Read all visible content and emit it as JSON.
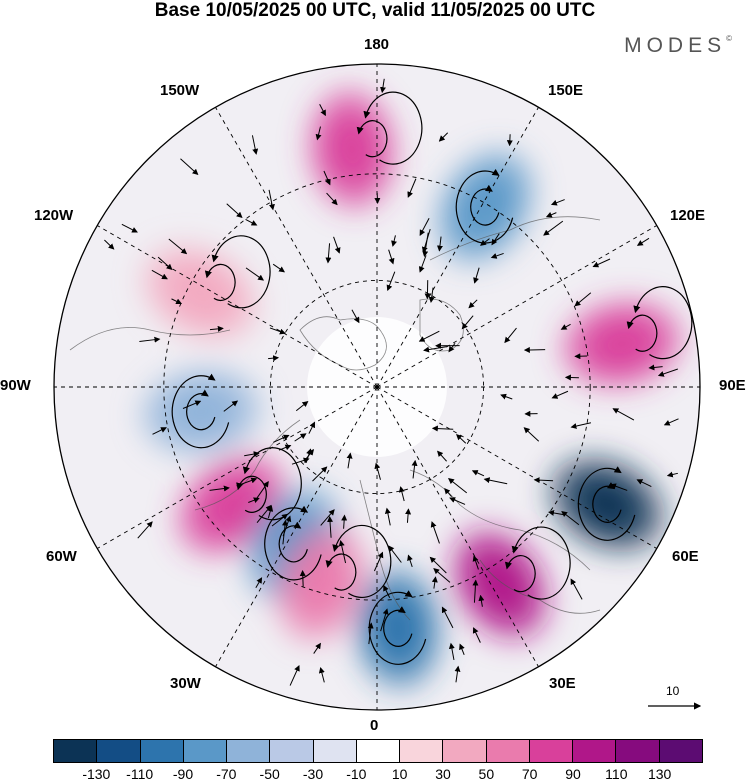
{
  "title": "Base 10/05/2025 00 UTC, valid 11/05/2025 00 UTC",
  "brand": "MODES",
  "brand_mark": "©",
  "longitude_labels": {
    "top": "180",
    "bottom": "0",
    "left": "90W",
    "right": "90E",
    "upper_left": "150W",
    "upper_left2": "120W",
    "upper_right": "150E",
    "upper_right2": "120E",
    "lower_left": "60W",
    "lower_left2": "30W",
    "lower_right": "60E",
    "lower_right2": "30E"
  },
  "vector_scale_label": "10",
  "colorbar": {
    "ticks": [
      "-130",
      "-110",
      "-90",
      "-70",
      "-50",
      "-30",
      "-10",
      "10",
      "30",
      "50",
      "70",
      "90",
      "110",
      "130"
    ],
    "colors": [
      "#0c3355",
      "#134d85",
      "#2d74ad",
      "#5a98c8",
      "#8fb3d9",
      "#bac9e6",
      "#dfe3f1",
      "#ffffff",
      "#f9d5dc",
      "#f2a9c0",
      "#ea7bad",
      "#d9409b",
      "#b01789",
      "#860b7e",
      "#5c0c72"
    ]
  },
  "anomaly_features": [
    {
      "kind": "low",
      "color": "#2d74ad",
      "bearing_deg": 175,
      "dist": 0.75
    },
    {
      "kind": "high",
      "color": "#b01789",
      "bearing_deg": 148,
      "dist": 0.72
    },
    {
      "kind": "low",
      "color": "#0c3355",
      "bearing_deg": 117,
      "dist": 0.8
    },
    {
      "kind": "high",
      "color": "#d9409b",
      "bearing_deg": 80,
      "dist": 0.77
    },
    {
      "kind": "low",
      "color": "#5a98c8",
      "bearing_deg": 31,
      "dist": 0.65
    },
    {
      "kind": "high",
      "color": "#d9409b",
      "bearing_deg": 354,
      "dist": 0.74
    },
    {
      "kind": "high",
      "color": "#f2a9c0",
      "bearing_deg": 298,
      "dist": 0.62
    },
    {
      "kind": "low",
      "color": "#8fb3d9",
      "bearing_deg": 262,
      "dist": 0.55
    },
    {
      "kind": "high",
      "color": "#d9409b",
      "bearing_deg": 231,
      "dist": 0.58
    },
    {
      "kind": "low",
      "color": "#5a98c8",
      "bearing_deg": 208,
      "dist": 0.55
    },
    {
      "kind": "high",
      "color": "#ea7bad",
      "bearing_deg": 196,
      "dist": 0.63
    }
  ]
}
